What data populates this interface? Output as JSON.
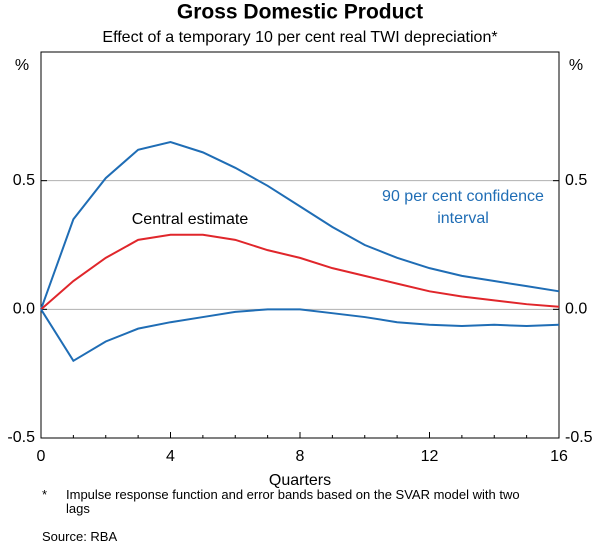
{
  "chart_data": {
    "type": "line",
    "title": "Gross Domestic Product",
    "subtitle": "Effect of a temporary 10 per cent real TWI depreciation*",
    "x_label": "Quarters",
    "y_unit": "%",
    "footnote_marker": "*",
    "footnote": "Impulse response function and error bands based on the SVAR model with two lags",
    "source": "Source: RBA",
    "x": [
      0,
      1,
      2,
      3,
      4,
      5,
      6,
      7,
      8,
      9,
      10,
      11,
      12,
      13,
      14,
      15,
      16
    ],
    "xlim": [
      0,
      16
    ],
    "xticks": [
      0,
      4,
      8,
      12,
      16
    ],
    "ylim": [
      -0.5,
      1.0
    ],
    "yticks": [
      -0.5,
      {
        "value": 0,
        "label": "0.0"
      },
      0.5
    ],
    "grid": true,
    "series": [
      {
        "name": "90 per cent confidence interval",
        "color": "#1f6db5",
        "values": [
          0,
          0.35,
          0.51,
          0.62,
          0.65,
          0.61,
          0.55,
          0.48,
          0.4,
          0.32,
          0.25,
          0.2,
          0.16,
          0.13,
          0.11,
          0.09,
          0.07
        ]
      },
      {
        "name": "Central estimate",
        "color": "#e0262b",
        "values": [
          0,
          0.11,
          0.2,
          0.27,
          0.29,
          0.29,
          0.27,
          0.23,
          0.2,
          0.16,
          0.13,
          0.1,
          0.07,
          0.05,
          0.035,
          0.02,
          0.01
        ]
      },
      {
        "color": "#1f6db5",
        "values": [
          0,
          -0.2,
          -0.125,
          -0.075,
          -0.05,
          -0.03,
          -0.01,
          0,
          0,
          -0.015,
          -0.03,
          -0.05,
          -0.06,
          -0.065,
          -0.06,
          -0.065,
          -0.06
        ]
      }
    ]
  }
}
